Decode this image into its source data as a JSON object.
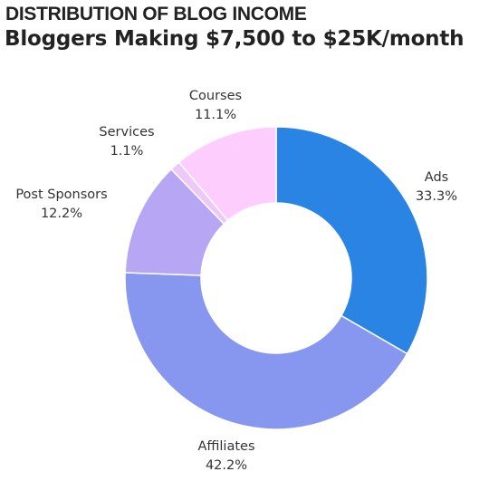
{
  "chart_data": {
    "type": "pie",
    "title": "DISTRIBUTION OF BLOG INCOME",
    "subtitle": "Bloggers Making $7,500 to $25K/month",
    "donut": true,
    "slices": [
      {
        "label": "Ads",
        "value": 33.3,
        "value_label": "33.3%",
        "color": "#2a84e4"
      },
      {
        "label": "Affiliates",
        "value": 42.2,
        "value_label": "42.2%",
        "color": "#8796ee"
      },
      {
        "label": "Post Sponsors",
        "value": 12.2,
        "value_label": "12.2%",
        "color": "#b7a6f4"
      },
      {
        "label": "Services",
        "value": 1.1,
        "value_label": "1.1%",
        "color": "#efc8fa"
      },
      {
        "label": "Courses",
        "value": 11.1,
        "value_label": "11.1%",
        "color": "#fdcdfd"
      }
    ]
  }
}
